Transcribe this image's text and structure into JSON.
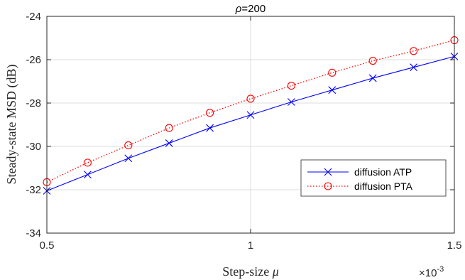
{
  "chart_data": {
    "type": "line",
    "title_prefix": "ρ",
    "title_suffix": "=200",
    "xlabel_text": "Step-size ",
    "xlabel_symbol": "μ",
    "ylabel": "Steady-state MSD (dB)",
    "x_multiplier_base": "×10",
    "x_multiplier_exp": "-3",
    "xlim": [
      0.5,
      1.5
    ],
    "ylim": [
      -34,
      -24
    ],
    "xticks": [
      "0.5",
      "1",
      "1.5"
    ],
    "xtick_values": [
      0.5,
      1.0,
      1.5
    ],
    "yticks": [
      "-34",
      "-32",
      "-30",
      "-28",
      "-26",
      "-24"
    ],
    "ytick_values": [
      -34,
      -32,
      -30,
      -28,
      -26,
      -24
    ],
    "grid": true,
    "legend_position": "lower-right",
    "x": [
      0.5,
      0.6,
      0.7,
      0.8,
      0.9,
      1.0,
      1.1,
      1.2,
      1.3,
      1.4,
      1.5
    ],
    "series": [
      {
        "name": "diffusion ATP",
        "color": "#0000ff",
        "marker": "x",
        "line": "solid",
        "values": [
          -32.05,
          -31.3,
          -30.55,
          -29.85,
          -29.15,
          -28.55,
          -27.95,
          -27.4,
          -26.85,
          -26.35,
          -25.85
        ]
      },
      {
        "name": "diffusion PTA",
        "color": "#ff0000",
        "marker": "o",
        "line": "dotted",
        "values": [
          -31.65,
          -30.75,
          -29.95,
          -29.15,
          -28.45,
          -27.8,
          -27.2,
          -26.6,
          -26.05,
          -25.6,
          -25.1
        ]
      }
    ]
  }
}
